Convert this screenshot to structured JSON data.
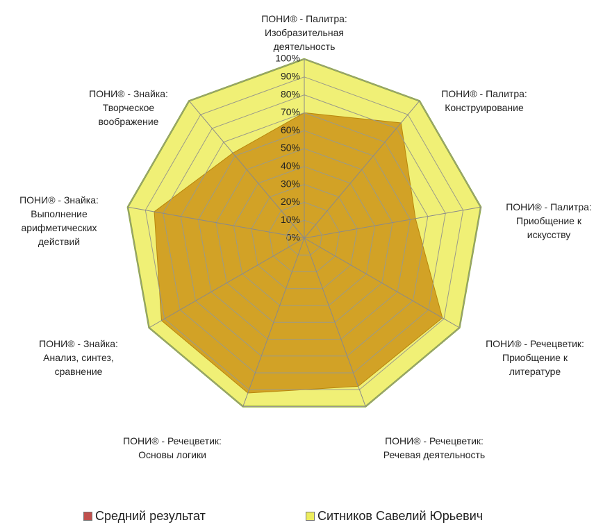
{
  "chart_data": {
    "type": "radar",
    "categories": [
      "ПОНИ® - Палитра: Изобразительная деятельность",
      "ПОНИ® - Палитра: Конструирование",
      "ПОНИ® - Палитра: Приобщение к искусству",
      "ПОНИ® - Речецветик: Приобщение к литературе",
      "ПОНИ® - Речецветик: Речевая деятельность",
      "ПОНИ® - Речецветик: Основы логики",
      "ПОНИ® - Знайка: Анализ, синтез, сравнение",
      "ПОНИ® - Знайка: Выполнение арифметических действий",
      "ПОНИ® - Знайка: Творческое воображение"
    ],
    "series": [
      {
        "name": "Средний результат",
        "color": "#cf9b1f",
        "values": [
          70,
          84,
          63,
          89,
          88,
          92,
          92,
          85,
          62
        ]
      },
      {
        "name": "Ситников Савелий Юрьевич",
        "color": "#eded5e",
        "values": [
          100,
          100,
          100,
          100,
          100,
          100,
          100,
          100,
          100
        ]
      }
    ],
    "ylim": [
      0,
      100
    ],
    "yticks": [
      {
        "value": 0,
        "label": "0%"
      },
      {
        "value": 10,
        "label": "10%"
      },
      {
        "value": 20,
        "label": "20%"
      },
      {
        "value": 30,
        "label": "30%"
      },
      {
        "value": 40,
        "label": "40%"
      },
      {
        "value": 50,
        "label": "50%"
      },
      {
        "value": 60,
        "label": "60%"
      },
      {
        "value": 70,
        "label": "70%"
      },
      {
        "value": 80,
        "label": "80%"
      },
      {
        "value": 90,
        "label": "90%"
      },
      {
        "value": 100,
        "label": "100%"
      }
    ],
    "grid": true,
    "legend": "bottom"
  }
}
